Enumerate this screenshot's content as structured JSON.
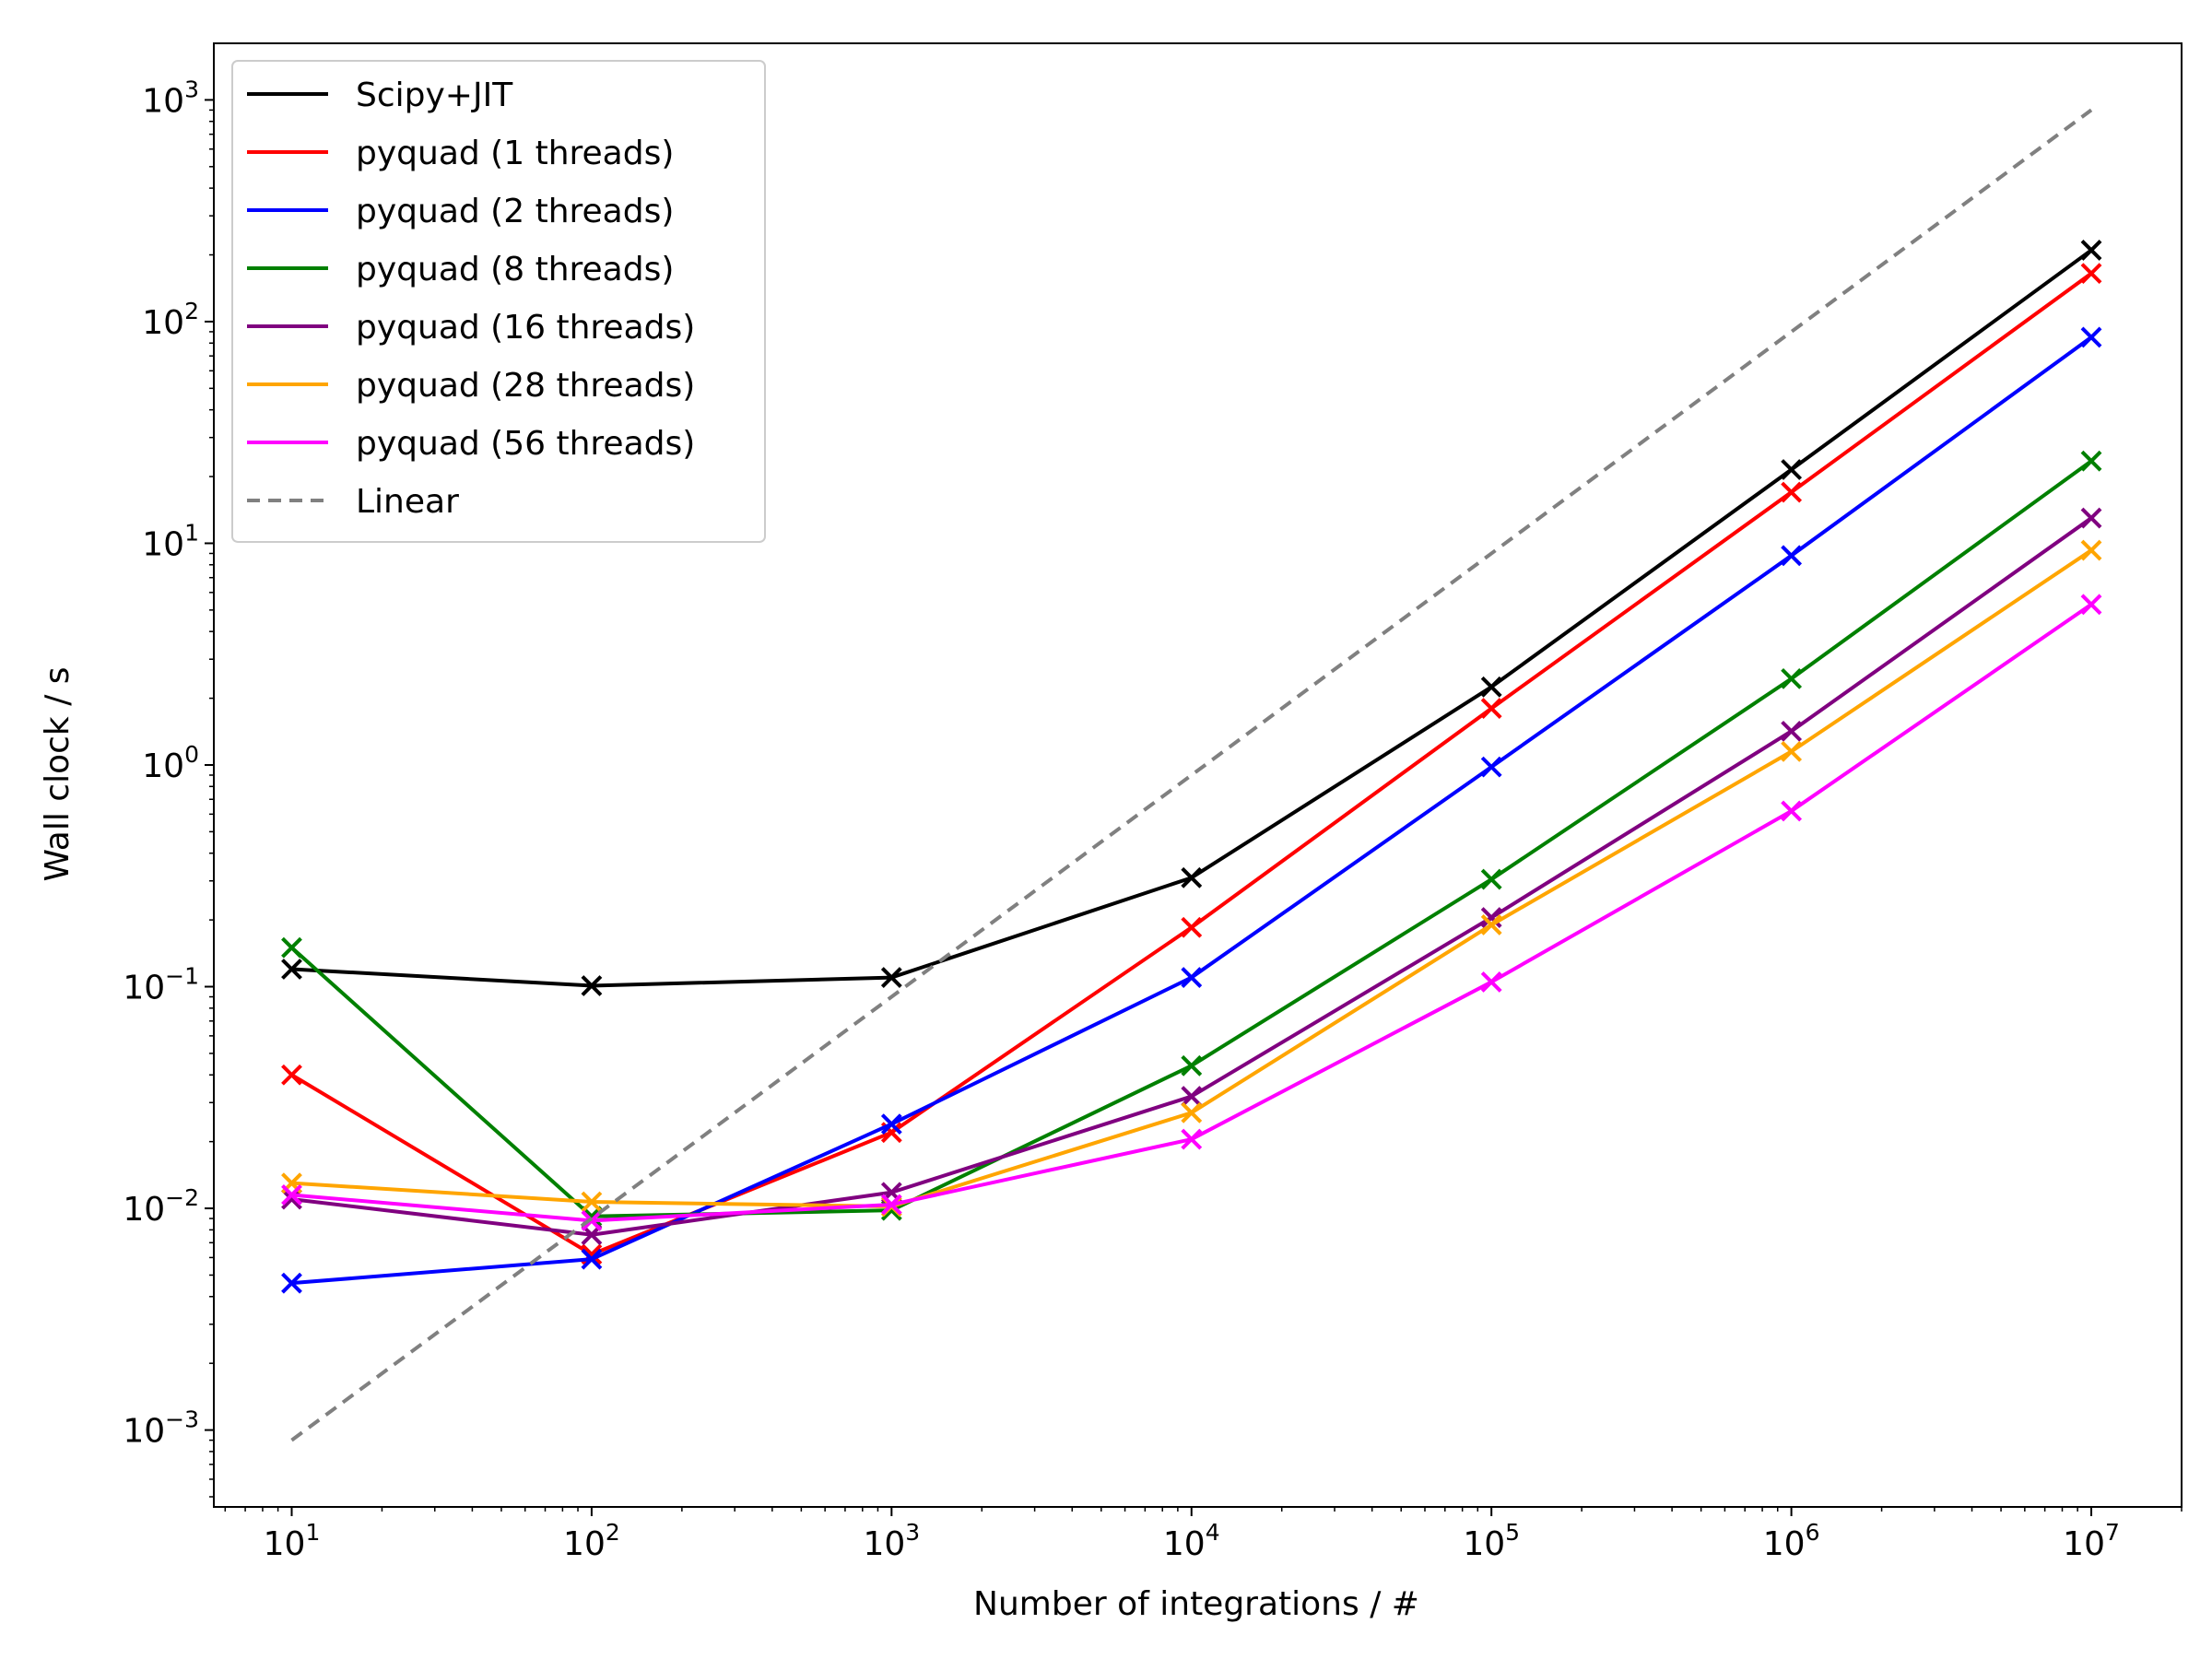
{
  "chart_data": {
    "type": "line",
    "scale": {
      "x": "log",
      "y": "log"
    },
    "x": [
      10,
      100,
      1000,
      10000,
      100000,
      1000000,
      10000000
    ],
    "xlabel": "Number of integrations / #",
    "ylabel": "Wall clock / s",
    "xlim": [
      5.5,
      20000000
    ],
    "ylim": [
      0.00045,
      1800
    ],
    "x_ticks": [
      {
        "value": 10,
        "base": "10",
        "exp": "1"
      },
      {
        "value": 100,
        "base": "10",
        "exp": "2"
      },
      {
        "value": 1000,
        "base": "10",
        "exp": "3"
      },
      {
        "value": 10000,
        "base": "10",
        "exp": "4"
      },
      {
        "value": 100000,
        "base": "10",
        "exp": "5"
      },
      {
        "value": 1000000,
        "base": "10",
        "exp": "6"
      },
      {
        "value": 10000000,
        "base": "10",
        "exp": "7"
      }
    ],
    "y_ticks": [
      {
        "value": 0.001,
        "base": "10",
        "exp": "−3"
      },
      {
        "value": 0.01,
        "base": "10",
        "exp": "−2"
      },
      {
        "value": 0.1,
        "base": "10",
        "exp": "−1"
      },
      {
        "value": 1,
        "base": "10",
        "exp": "0"
      },
      {
        "value": 10,
        "base": "10",
        "exp": "1"
      },
      {
        "value": 100,
        "base": "10",
        "exp": "2"
      },
      {
        "value": 1000,
        "base": "10",
        "exp": "3"
      }
    ],
    "series": [
      {
        "name": "Scipy+JIT",
        "color": "#000000",
        "marker": "x",
        "values": [
          0.12,
          0.101,
          0.11,
          0.31,
          2.25,
          21.5,
          210
        ]
      },
      {
        "name": "pyquad (1 threads)",
        "color": "#ff0000",
        "marker": "x",
        "values": [
          0.04,
          0.0062,
          0.022,
          0.185,
          1.8,
          17,
          165
        ]
      },
      {
        "name": "pyquad (2 threads)",
        "color": "#0000ff",
        "marker": "x",
        "values": [
          0.0046,
          0.0059,
          0.024,
          0.11,
          0.98,
          8.8,
          85
        ]
      },
      {
        "name": "pyquad (8 threads)",
        "color": "#008000",
        "marker": "x",
        "values": [
          0.15,
          0.0092,
          0.0098,
          0.044,
          0.305,
          2.45,
          23.5
        ]
      },
      {
        "name": "pyquad (16 threads)",
        "color": "#800080",
        "marker": "x",
        "values": [
          0.011,
          0.0076,
          0.0118,
          0.032,
          0.205,
          1.42,
          13
        ]
      },
      {
        "name": "pyquad (28 threads)",
        "color": "#ffa500",
        "marker": "x",
        "values": [
          0.013,
          0.0107,
          0.0102,
          0.027,
          0.19,
          1.15,
          9.3
        ]
      },
      {
        "name": "pyquad (56 threads)",
        "color": "#ff00ff",
        "marker": "x",
        "values": [
          0.0115,
          0.0088,
          0.0104,
          0.0205,
          0.105,
          0.62,
          5.3
        ]
      },
      {
        "name": "Linear",
        "color": "#808080",
        "dashed": true,
        "marker": "none",
        "x": [
          10,
          10000000
        ],
        "values": [
          0.0009,
          900
        ]
      }
    ],
    "legend": {
      "position": "upper-left"
    },
    "grid": false
  }
}
